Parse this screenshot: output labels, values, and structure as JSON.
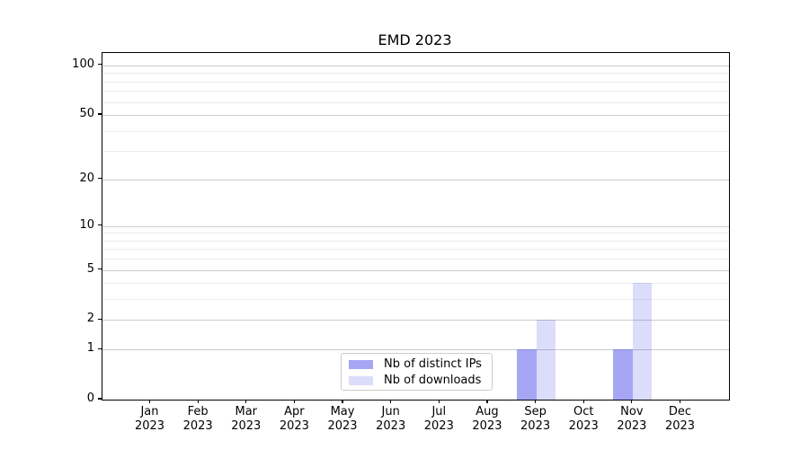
{
  "figure": {
    "title": "EMD 2023"
  },
  "chart_data": {
    "type": "bar",
    "title": "EMD 2023",
    "categories": [
      {
        "month": "Jan",
        "year": "2023"
      },
      {
        "month": "Feb",
        "year": "2023"
      },
      {
        "month": "Mar",
        "year": "2023"
      },
      {
        "month": "Apr",
        "year": "2023"
      },
      {
        "month": "May",
        "year": "2023"
      },
      {
        "month": "Jun",
        "year": "2023"
      },
      {
        "month": "Jul",
        "year": "2023"
      },
      {
        "month": "Aug",
        "year": "2023"
      },
      {
        "month": "Sep",
        "year": "2023"
      },
      {
        "month": "Oct",
        "year": "2023"
      },
      {
        "month": "Nov",
        "year": "2023"
      },
      {
        "month": "Dec",
        "year": "2023"
      }
    ],
    "series": [
      {
        "name": "Nb of distinct IPs",
        "color": "rgba(70,70,235,0.48)",
        "values": [
          0,
          0,
          0,
          0,
          0,
          0,
          0,
          0,
          1,
          0,
          1,
          0
        ]
      },
      {
        "name": "Nb of downloads",
        "color": "rgba(70,70,235,0.19)",
        "values": [
          0,
          0,
          0,
          0,
          0,
          0,
          0,
          0,
          2,
          0,
          4,
          0
        ]
      }
    ],
    "yscale": "log1p",
    "ylim": [
      0,
      119
    ],
    "y_major_ticks": [
      0,
      1,
      2,
      5,
      10,
      20,
      50,
      100
    ],
    "y_minor_gridlines": [
      3,
      4,
      6,
      7,
      8,
      9,
      30,
      40,
      60,
      70,
      80,
      90
    ],
    "grid": true,
    "legend_position": "inside-bottom-center",
    "colors": {
      "spine": "#000000",
      "grid_major": "#cccccc",
      "grid_minor": "#ebebeb",
      "text": "#000000"
    }
  }
}
